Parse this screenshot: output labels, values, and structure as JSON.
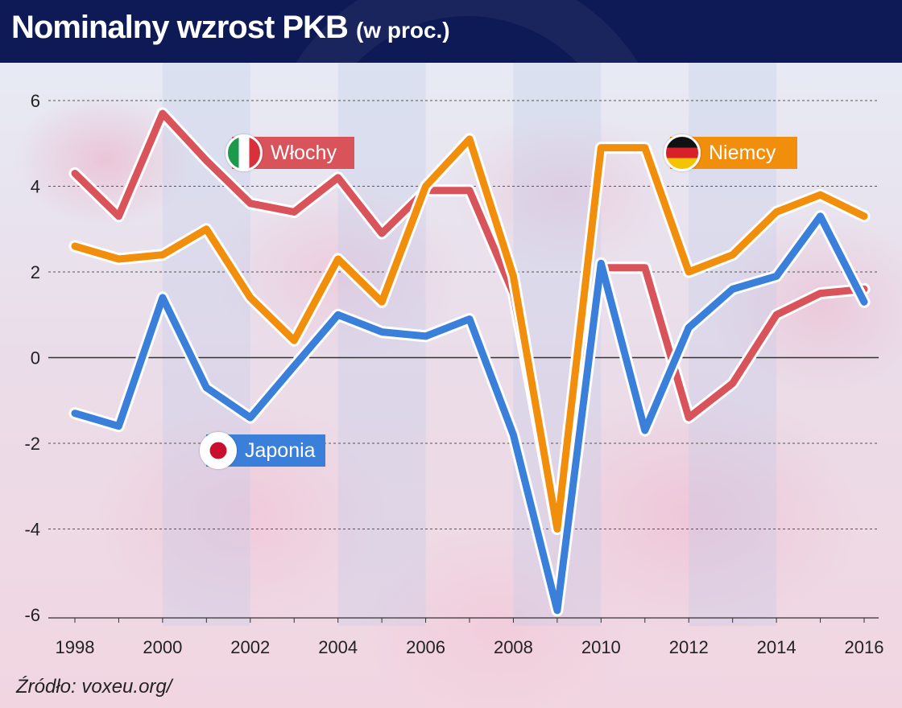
{
  "header": {
    "title": "Nominalny wzrost PKB",
    "subtitle": "(w proc.)"
  },
  "source": "Źródło: voxeu.org/",
  "legend": [
    {
      "label": "Włochy",
      "flag": "flag-italy-icon",
      "color": "#d9535a"
    },
    {
      "label": "Niemcy",
      "flag": "flag-germany-icon",
      "color": "#f18e0b"
    },
    {
      "label": "Japonia",
      "flag": "flag-japan-icon",
      "color": "#3a7fd9"
    }
  ],
  "chart_data": {
    "type": "line",
    "title": "Nominalny wzrost PKB",
    "subtitle": "(w proc.)",
    "xlabel": "",
    "ylabel": "",
    "x": [
      1998,
      1999,
      2000,
      2001,
      2002,
      2003,
      2004,
      2005,
      2006,
      2007,
      2008,
      2009,
      2010,
      2011,
      2012,
      2013,
      2014,
      2015,
      2016
    ],
    "xticks": [
      "1998",
      "2000",
      "2002",
      "2004",
      "2006",
      "2008",
      "2010",
      "2012",
      "2014",
      "2016"
    ],
    "yticks": [
      "6",
      "4",
      "2",
      "0",
      "-2",
      "-4",
      "-6"
    ],
    "ylim": [
      -6,
      6.3
    ],
    "grid": "horizontal dashed",
    "series": [
      {
        "name": "Włochy",
        "color": "#d9535a",
        "values": [
          4.3,
          3.3,
          5.7,
          4.6,
          3.6,
          3.4,
          4.2,
          2.9,
          3.9,
          3.9,
          1.5,
          -4.0,
          2.1,
          2.1,
          -1.4,
          -0.6,
          1.0,
          1.5,
          1.6
        ]
      },
      {
        "name": "Niemcy",
        "color": "#f18e0b",
        "values": [
          2.6,
          2.3,
          2.4,
          3.0,
          1.4,
          0.4,
          2.3,
          1.3,
          4.0,
          5.1,
          1.9,
          -4.0,
          4.9,
          4.9,
          2.0,
          2.4,
          3.4,
          3.8,
          3.3
        ]
      },
      {
        "name": "Japonia",
        "color": "#3a7fd9",
        "values": [
          -1.3,
          -1.6,
          1.4,
          -0.7,
          -1.4,
          -0.2,
          1.0,
          0.6,
          0.5,
          0.9,
          -1.8,
          -5.9,
          2.2,
          -1.7,
          0.7,
          1.6,
          1.9,
          3.3,
          1.3
        ]
      }
    ]
  }
}
